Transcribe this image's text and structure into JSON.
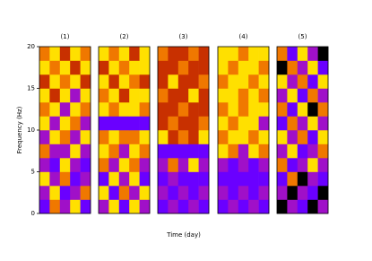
{
  "chart_data": {
    "type": "heatmap",
    "ylabel": "Frequency (Hz)",
    "xlabel": "Time (day)",
    "ylim": [
      0,
      20
    ],
    "yticks": [
      0,
      5,
      10,
      15,
      20
    ],
    "colors": [
      "#000000",
      "#6a00ff",
      "#a010c8",
      "#c83000",
      "#f07800",
      "#ffe000"
    ],
    "panels": [
      {
        "title": "(1)",
        "z": [
          [
            1,
            4,
            2,
            5,
            1
          ],
          [
            2,
            5,
            1,
            2,
            4
          ],
          [
            5,
            2,
            4,
            1,
            2
          ],
          [
            2,
            1,
            5,
            2,
            1
          ],
          [
            4,
            2,
            2,
            5,
            2
          ],
          [
            2,
            5,
            4,
            2,
            5
          ],
          [
            5,
            2,
            5,
            4,
            2
          ],
          [
            4,
            5,
            2,
            5,
            4
          ],
          [
            5,
            3,
            5,
            2,
            5
          ],
          [
            3,
            5,
            4,
            5,
            3
          ],
          [
            5,
            4,
            5,
            3,
            5
          ],
          [
            4,
            5,
            3,
            5,
            4
          ]
        ]
      },
      {
        "title": "(2)",
        "z": [
          [
            2,
            5,
            1,
            5,
            2
          ],
          [
            5,
            1,
            4,
            2,
            5
          ],
          [
            1,
            5,
            2,
            5,
            1
          ],
          [
            4,
            2,
            5,
            4,
            2
          ],
          [
            5,
            4,
            2,
            5,
            4
          ],
          [
            4,
            5,
            4,
            4,
            5
          ],
          [
            1,
            1,
            1,
            1,
            1
          ],
          [
            5,
            4,
            5,
            5,
            4
          ],
          [
            4,
            5,
            3,
            5,
            5
          ],
          [
            5,
            3,
            5,
            4,
            3
          ],
          [
            3,
            5,
            4,
            5,
            5
          ],
          [
            5,
            4,
            5,
            3,
            5
          ]
        ]
      },
      {
        "title": "(3)",
        "z": [
          [
            1,
            2,
            1,
            2,
            1
          ],
          [
            2,
            1,
            2,
            1,
            2
          ],
          [
            1,
            2,
            1,
            1,
            1
          ],
          [
            2,
            4,
            2,
            5,
            2
          ],
          [
            1,
            1,
            1,
            1,
            1
          ],
          [
            5,
            3,
            4,
            3,
            5
          ],
          [
            3,
            4,
            3,
            3,
            4
          ],
          [
            3,
            3,
            4,
            3,
            3
          ],
          [
            4,
            3,
            3,
            5,
            3
          ],
          [
            3,
            5,
            3,
            3,
            4
          ],
          [
            3,
            3,
            4,
            3,
            3
          ],
          [
            4,
            3,
            3,
            4,
            3
          ]
        ]
      },
      {
        "title": "(4)",
        "z": [
          [
            1,
            2,
            1,
            2,
            1
          ],
          [
            2,
            1,
            2,
            1,
            2
          ],
          [
            1,
            1,
            1,
            1,
            1
          ],
          [
            2,
            1,
            2,
            1,
            2
          ],
          [
            5,
            4,
            2,
            5,
            4
          ],
          [
            4,
            5,
            5,
            4,
            5
          ],
          [
            5,
            4,
            5,
            5,
            2
          ],
          [
            4,
            5,
            4,
            5,
            5
          ],
          [
            5,
            5,
            4,
            5,
            4
          ],
          [
            4,
            5,
            5,
            4,
            5
          ],
          [
            5,
            4,
            5,
            5,
            4
          ],
          [
            5,
            5,
            4,
            5,
            5
          ]
        ]
      },
      {
        "title": "(5)",
        "z": [
          [
            0,
            2,
            1,
            0,
            2
          ],
          [
            2,
            0,
            2,
            1,
            0
          ],
          [
            1,
            4,
            0,
            2,
            1
          ],
          [
            4,
            1,
            2,
            5,
            2
          ],
          [
            2,
            5,
            1,
            2,
            4
          ],
          [
            5,
            2,
            4,
            1,
            5
          ],
          [
            1,
            4,
            2,
            5,
            2
          ],
          [
            4,
            1,
            5,
            0,
            4
          ],
          [
            2,
            5,
            1,
            4,
            2
          ],
          [
            5,
            2,
            4,
            1,
            5
          ],
          [
            0,
            4,
            2,
            5,
            1
          ],
          [
            4,
            1,
            5,
            2,
            0
          ]
        ]
      }
    ]
  }
}
